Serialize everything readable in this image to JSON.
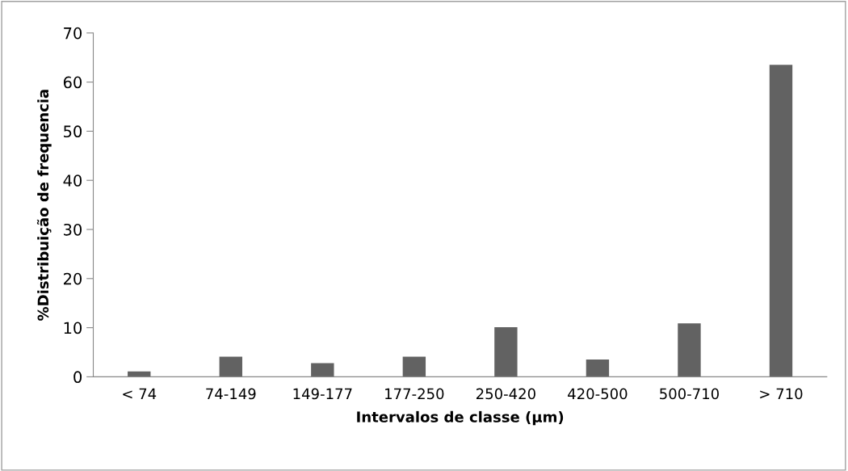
{
  "chart_data": {
    "type": "bar",
    "xlabel": "Intervalos de classe (µm)",
    "ylabel": "%Distribuição de frequencia",
    "categories": [
      "< 74",
      "74-149",
      "149-177",
      "177-250",
      "250-420",
      "420-500",
      "500-710",
      "> 710"
    ],
    "values": [
      1.1,
      4.1,
      2.8,
      4.1,
      10.1,
      3.5,
      10.9,
      63.5
    ],
    "color": "#626262",
    "ylim": [
      0,
      70
    ],
    "yticks": [
      0,
      10,
      20,
      30,
      40,
      50,
      60,
      70
    ],
    "grid": false,
    "legend": false
  }
}
